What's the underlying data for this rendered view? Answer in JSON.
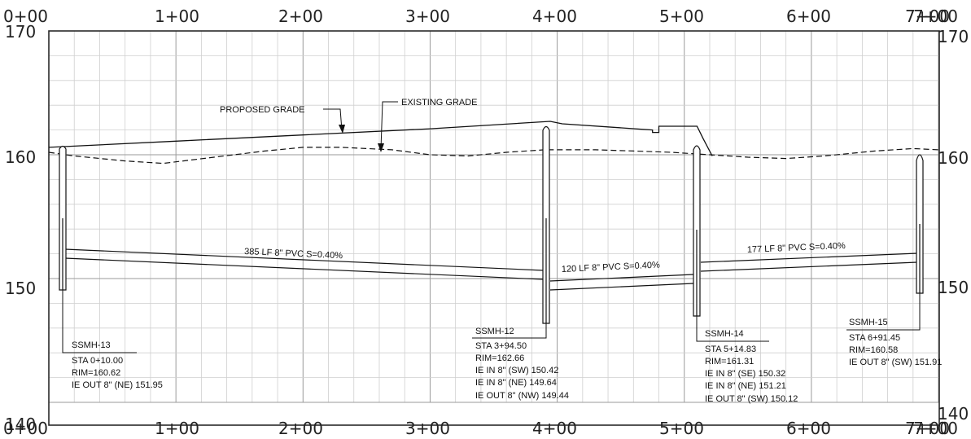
{
  "stations": {
    "top": [
      "0+00",
      "1+00",
      "2+00",
      "3+00",
      "4+00",
      "5+00",
      "6+00",
      "7+00"
    ],
    "bottom": [
      "0+00",
      "1+00",
      "2+00",
      "3+00",
      "4+00",
      "5+00",
      "6+00",
      "7+00"
    ],
    "end_overlap_top": "7+00",
    "end_overlap_bottom": "7+00"
  },
  "elevations": {
    "left": [
      "170",
      "160",
      "150",
      "140"
    ],
    "right": [
      "170",
      "160",
      "150",
      "140"
    ]
  },
  "callouts": {
    "proposed": "PROPOSED GRADE",
    "existing": "EXISTING GRADE"
  },
  "pipes": [
    {
      "label": "385 LF 8\" PVC  S=0.40%"
    },
    {
      "label": "120 LF 8\" PVC  S=0.40%"
    },
    {
      "label": "177 LF 8\" PVC  S=0.40%"
    }
  ],
  "manholes": [
    {
      "name": "SSMH-13",
      "lines": [
        "STA 0+10.00",
        "RIM=160.62",
        "IE OUT 8\" (NE) 151.95"
      ]
    },
    {
      "name": "SSMH-12",
      "lines": [
        "STA 3+94.50",
        "RIM=162.66",
        "IE IN 8\" (SW) 150.42",
        "IE IN 8\" (NE) 149.64",
        "IE OUT 8\" (NW) 149.44"
      ]
    },
    {
      "name": "SSMH-14",
      "lines": [
        "STA 5+14.83",
        "RIM=161.31",
        "IE IN 8\" (SE) 150.32",
        "IE IN 8\" (NE) 151.21",
        "IE OUT 8\" (SW) 150.12"
      ]
    },
    {
      "name": "SSMH-15",
      "lines": [
        "STA 6+91.45",
        "RIM=160.58",
        "IE OUT 8\" (SW) 151.91"
      ]
    }
  ],
  "profile_data": {
    "existing_grade": [
      [
        0,
        160.2
      ],
      [
        20,
        159.9
      ],
      [
        60,
        159.5
      ],
      [
        90,
        159.3
      ],
      [
        130,
        159.8
      ],
      [
        170,
        160.3
      ],
      [
        200,
        160.6
      ],
      [
        230,
        160.6
      ],
      [
        270,
        160.4
      ],
      [
        300,
        160.0
      ],
      [
        330,
        159.9
      ],
      [
        360,
        160.2
      ],
      [
        390,
        160.4
      ],
      [
        430,
        160.4
      ],
      [
        460,
        160.3
      ],
      [
        490,
        160.2
      ],
      [
        520,
        160.0
      ],
      [
        550,
        159.8
      ],
      [
        580,
        159.7
      ],
      [
        610,
        159.9
      ],
      [
        650,
        160.3
      ],
      [
        680,
        160.5
      ],
      [
        700,
        160.4
      ]
    ],
    "proposed_grade": [
      [
        0,
        160.6
      ],
      [
        100,
        161.1
      ],
      [
        200,
        161.6
      ],
      [
        300,
        162.1
      ],
      [
        394.5,
        162.7
      ],
      [
        404,
        162.5
      ],
      [
        475,
        162.0
      ],
      [
        475,
        161.8
      ],
      [
        480,
        161.8
      ],
      [
        480,
        162.3
      ],
      [
        510,
        162.3
      ],
      [
        514.8,
        161.3
      ],
      [
        522,
        159.9
      ]
    ]
  },
  "colors": {
    "line": "#111111",
    "grid": "#bdbdbd",
    "frame": "#2a2a2a"
  }
}
